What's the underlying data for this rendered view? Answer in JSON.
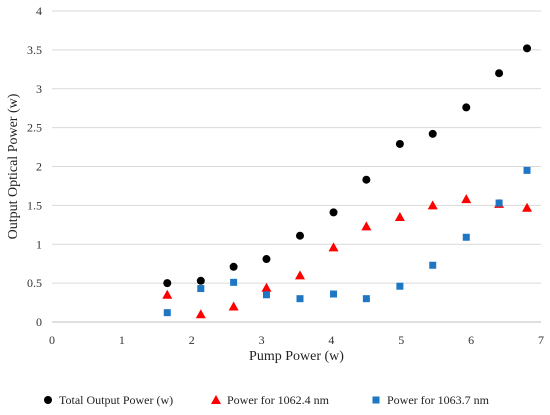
{
  "chart_data": {
    "type": "scatter",
    "title": "",
    "xlabel": "Pump Power (w)",
    "ylabel": "Output Optical Power (w)",
    "xlim": [
      0,
      7
    ],
    "ylim": [
      0,
      4
    ],
    "xticks": [
      "0",
      "1",
      "2",
      "3",
      "4",
      "5",
      "6",
      "7"
    ],
    "yticks": [
      "0",
      "0.5",
      "1",
      "1.5",
      "2",
      "2.5",
      "3",
      "3.5",
      "4"
    ],
    "grid": "horizontal",
    "legend_position": "bottom",
    "series": [
      {
        "name": "Total Output Power (w)",
        "marker": "circle",
        "color": "#000000",
        "x": [
          1.65,
          2.13,
          2.6,
          3.07,
          3.55,
          4.03,
          4.5,
          4.98,
          5.45,
          5.93,
          6.4,
          6.8
        ],
        "y": [
          0.5,
          0.53,
          0.71,
          0.81,
          1.11,
          1.41,
          1.83,
          2.29,
          2.42,
          2.76,
          3.2,
          3.52
        ]
      },
      {
        "name": "Power for 1062.4 nm",
        "marker": "triangle",
        "color": "#ff0000",
        "x": [
          1.65,
          2.13,
          2.6,
          3.07,
          3.55,
          4.03,
          4.5,
          4.98,
          5.45,
          5.93,
          6.4,
          6.8
        ],
        "y": [
          0.35,
          0.1,
          0.2,
          0.44,
          0.6,
          0.96,
          1.23,
          1.35,
          1.5,
          1.58,
          1.52,
          1.47
        ]
      },
      {
        "name": "Power for 1063.7 nm",
        "marker": "square",
        "color": "#1f77c4",
        "x": [
          1.65,
          2.13,
          2.6,
          3.07,
          3.55,
          4.03,
          4.5,
          4.98,
          5.45,
          5.93,
          6.4,
          6.8
        ],
        "y": [
          0.12,
          0.43,
          0.51,
          0.35,
          0.3,
          0.36,
          0.3,
          0.46,
          0.73,
          1.09,
          1.53,
          1.95
        ]
      }
    ]
  }
}
